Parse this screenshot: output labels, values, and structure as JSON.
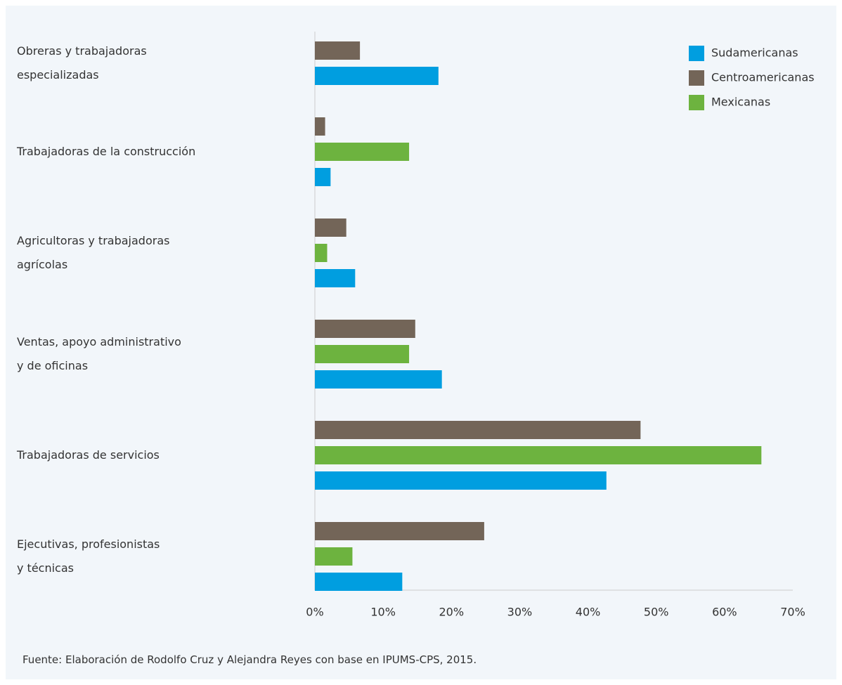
{
  "chart_data": {
    "type": "barh",
    "categories": [
      "Obreras y trabajadoras\nespecializadas",
      "Trabajadoras de la construcción",
      "Agricultoras y trabajadoras\nagrícolas",
      "Ventas, apoyo administrativo\ny de oficinas",
      "Trabajadoras de servicios",
      "Ejecutivas, profesionistas\ny técnicas"
    ],
    "series": [
      {
        "name": "Sudamericanas",
        "color": "#009ee0",
        "values": [
          18.1,
          2.3,
          5.9,
          18.6,
          42.7,
          12.8
        ]
      },
      {
        "name": "Centroamericanas",
        "color": "#736558",
        "values": [
          6.6,
          1.5,
          4.6,
          14.7,
          47.7,
          24.8
        ]
      },
      {
        "name": "Mexicanas",
        "color": "#6db33f",
        "values": [
          null,
          13.8,
          1.8,
          13.8,
          65.4,
          5.5
        ]
      }
    ],
    "xlim": [
      0,
      70
    ],
    "xticks": [
      {
        "value": 0,
        "label": "0%"
      },
      {
        "value": 10,
        "label": "10%"
      },
      {
        "value": 20,
        "label": "20%"
      },
      {
        "value": 30,
        "label": "30%"
      },
      {
        "value": 40,
        "label": "40%"
      },
      {
        "value": 50,
        "label": "50%"
      },
      {
        "value": 60,
        "label": "60%"
      },
      {
        "value": 70,
        "label": "70%"
      }
    ],
    "legend": "upper right",
    "source": "Fuente: Elaboración de Rodolfo Cruz y Alejandra Reyes con base en IPUMS-CPS, 2015."
  }
}
